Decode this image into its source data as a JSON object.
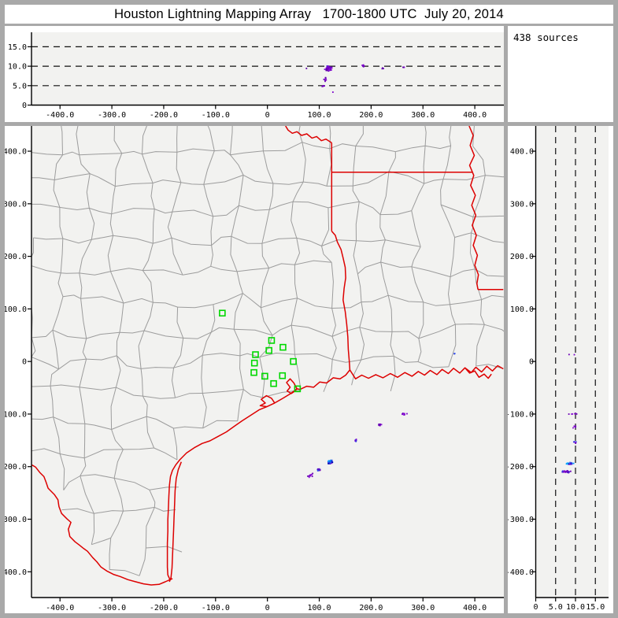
{
  "title": "Houston Lightning Mapping Array   1700-1800 UTC  July 20, 2014",
  "sources_panel": {
    "label": "438 sources"
  },
  "colors": {
    "frame": "#a9a9a9",
    "panel_bg": "#ffffff",
    "plot_bg": "#f2f2f0",
    "county_line": "#9c9c9c",
    "state_border": "#dd0000",
    "station": "#00d800",
    "axis": "#000000"
  },
  "palettes": {
    "purple": [
      "#7c00cc",
      "#6b00b6",
      "#8a14d6",
      "#5c00a8"
    ],
    "pb": [
      "#7c00cc",
      "#4028e0",
      "#2a50f0",
      "#6b00b6"
    ],
    "mix": [
      "#00a2ff",
      "#2a50f0",
      "#1a28d8",
      "#0000b0",
      "#38b8ff",
      "#7c00cc"
    ],
    "blue": [
      "#2a50f0",
      "#0000c8"
    ]
  },
  "chart_data": [
    {
      "type": "scatter",
      "name": "ew-altitude-projection",
      "x_axis": {
        "ticks": [
          -400,
          -300,
          -200,
          -100,
          0,
          100,
          200,
          300,
          400
        ],
        "tick_labels": [
          "-400.0",
          "-300.0",
          "-200.0",
          "-100.0",
          "0",
          "100.0",
          "200.0",
          "300.0",
          "400.0"
        ],
        "lim": [
          -455,
          456
        ]
      },
      "y_axis": {
        "ticks": [
          0,
          5,
          10,
          15
        ],
        "tick_labels": [
          "0",
          "5.0",
          "10.0",
          "15.0"
        ],
        "lim": [
          0,
          18.5
        ],
        "gridlines": [
          5,
          10,
          15
        ]
      },
      "clusters": [
        [
          118,
          9.4,
          10,
          1.1,
          46,
          "purple"
        ],
        [
          119,
          9.8,
          6,
          0.5,
          8,
          "pb"
        ],
        [
          112,
          6.8,
          5,
          1.0,
          8,
          "purple"
        ],
        [
          108,
          5.0,
          3,
          0.5,
          5,
          "purple"
        ],
        [
          126,
          3.5,
          1,
          0.3,
          1,
          "purple"
        ],
        [
          75,
          9.4,
          1,
          0.3,
          1,
          "purple"
        ],
        [
          185,
          10.1,
          4,
          0.4,
          6,
          "purple"
        ],
        [
          223,
          9.5,
          2,
          0.4,
          3,
          "purple"
        ],
        [
          263,
          9.8,
          3,
          0.4,
          4,
          "purple"
        ]
      ]
    },
    {
      "type": "scatter",
      "name": "plan-view-map",
      "x_axis": {
        "ticks": [
          -400,
          -300,
          -200,
          -100,
          0,
          100,
          200,
          300,
          400
        ],
        "tick_labels": [
          "-400.0",
          "-300.0",
          "-200.0",
          "-100.0",
          "0",
          "100.0",
          "200.0",
          "300.0",
          "400.0"
        ],
        "lim": [
          -455,
          456
        ]
      },
      "y_axis": {
        "ticks": [
          400,
          300,
          200,
          100,
          0,
          -100,
          -200,
          -300,
          -400
        ],
        "tick_labels": [
          "400.0",
          "300.0",
          "200.0",
          "100.0",
          "0",
          "-100.0",
          "-200.0",
          "-300.0",
          "-400.0"
        ],
        "lim": [
          -449,
          448
        ]
      },
      "stations": [
        [
          -87,
          92
        ],
        [
          8,
          40
        ],
        [
          3,
          21
        ],
        [
          -23,
          13
        ],
        [
          -25,
          -3
        ],
        [
          -26,
          -21
        ],
        [
          -5,
          -28
        ],
        [
          12,
          -42
        ],
        [
          30,
          27
        ],
        [
          50,
          0
        ],
        [
          29,
          -27
        ],
        [
          58,
          -52
        ]
      ],
      "clusters": [
        [
          121,
          -191,
          7,
          4,
          40,
          "mix"
        ],
        [
          100,
          -206,
          6,
          3,
          16,
          "pb"
        ],
        [
          82,
          -217,
          12,
          6,
          10,
          "purple"
        ],
        [
          170,
          -150,
          4,
          3,
          7,
          "pb"
        ],
        [
          217,
          -120,
          8,
          3,
          9,
          "purple"
        ],
        [
          263,
          -100,
          8,
          3,
          9,
          "purple"
        ],
        [
          361,
          15,
          2,
          1,
          2,
          "blue"
        ]
      ],
      "borders": {
        "red_river": [
          [
            35,
            448
          ],
          [
            40,
            440
          ],
          [
            48,
            434
          ],
          [
            57,
            437
          ],
          [
            66,
            430
          ],
          [
            76,
            433
          ],
          [
            86,
            425
          ],
          [
            95,
            428
          ],
          [
            104,
            420
          ],
          [
            113,
            423
          ],
          [
            124,
            416
          ]
        ],
        "tx_east": [
          [
            124,
            416
          ],
          [
            124,
            248
          ]
        ],
        "ar_la": [
          [
            124,
            360
          ],
          [
            396,
            360
          ]
        ],
        "sabine": [
          [
            124,
            248
          ],
          [
            131,
            240
          ],
          [
            135,
            227
          ],
          [
            142,
            213
          ],
          [
            146,
            197
          ],
          [
            150,
            179
          ],
          [
            151,
            159
          ],
          [
            148,
            139
          ],
          [
            146,
            117
          ],
          [
            150,
            95
          ],
          [
            153,
            71
          ],
          [
            155,
            47
          ],
          [
            156,
            23
          ],
          [
            158,
            0
          ],
          [
            159,
            -16
          ]
        ],
        "mississippi": [
          [
            389,
            448
          ],
          [
            397,
            430
          ],
          [
            391,
            411
          ],
          [
            399,
            392
          ],
          [
            390,
            373
          ],
          [
            398,
            354
          ],
          [
            392,
            335
          ],
          [
            401,
            316
          ],
          [
            394,
            297
          ],
          [
            402,
            278
          ],
          [
            395,
            259
          ],
          [
            403,
            240
          ],
          [
            397,
            221
          ],
          [
            405,
            202
          ],
          [
            400,
            183
          ],
          [
            407,
            165
          ],
          [
            404,
            148
          ],
          [
            406,
            137
          ]
        ],
        "la_ms": [
          [
            406,
            137
          ],
          [
            455,
            137
          ]
        ],
        "coast": [
          [
            455,
            -14
          ],
          [
            444,
            -8
          ],
          [
            434,
            -18
          ],
          [
            423,
            -9
          ],
          [
            413,
            -20
          ],
          [
            402,
            -11
          ],
          [
            393,
            -21
          ],
          [
            381,
            -12
          ],
          [
            371,
            -22
          ],
          [
            359,
            -13
          ],
          [
            349,
            -23
          ],
          [
            337,
            -15
          ],
          [
            327,
            -25
          ],
          [
            314,
            -17
          ],
          [
            303,
            -26
          ],
          [
            291,
            -19
          ],
          [
            279,
            -28
          ],
          [
            265,
            -21
          ],
          [
            251,
            -30
          ],
          [
            237,
            -23
          ],
          [
            223,
            -31
          ],
          [
            209,
            -25
          ],
          [
            195,
            -32
          ],
          [
            182,
            -26
          ],
          [
            170,
            -33
          ],
          [
            159,
            -16
          ],
          [
            151,
            -26
          ],
          [
            140,
            -33
          ],
          [
            127,
            -31
          ],
          [
            114,
            -41
          ],
          [
            101,
            -39
          ],
          [
            89,
            -49
          ],
          [
            76,
            -47
          ],
          [
            63,
            -53
          ],
          [
            57,
            -52
          ],
          [
            45,
            -61
          ],
          [
            30,
            -70
          ],
          [
            14,
            -79
          ],
          [
            -1,
            -86
          ],
          [
            -16,
            -92
          ],
          [
            -33,
            -103
          ],
          [
            -49,
            -113
          ],
          [
            -62,
            -122
          ],
          [
            -79,
            -134
          ],
          [
            -96,
            -143
          ],
          [
            -111,
            -151
          ],
          [
            -126,
            -156
          ],
          [
            -141,
            -164
          ],
          [
            -156,
            -174
          ],
          [
            -169,
            -187
          ],
          [
            -177,
            -197
          ],
          [
            -183,
            -207
          ],
          [
            -187,
            -219
          ],
          [
            -189,
            -236
          ],
          [
            -190,
            -256
          ],
          [
            -191,
            -279
          ],
          [
            -192,
            -301
          ],
          [
            -192,
            -323
          ],
          [
            -193,
            -346
          ],
          [
            -193,
            -369
          ],
          [
            -193,
            -391
          ],
          [
            -192,
            -406
          ],
          [
            -188,
            -415
          ],
          [
            -183,
            -413
          ]
        ],
        "barrier_island": [
          [
            -166,
            -191
          ],
          [
            -172,
            -206
          ],
          [
            -176,
            -223
          ],
          [
            -178,
            -246
          ],
          [
            -179,
            -271
          ],
          [
            -180,
            -296
          ],
          [
            -181,
            -321
          ],
          [
            -182,
            -346
          ],
          [
            -183,
            -371
          ],
          [
            -184,
            -393
          ],
          [
            -186,
            -411
          ],
          [
            -189,
            -419
          ]
        ],
        "rio_grande": [
          [
            -454,
            -197
          ],
          [
            -447,
            -201
          ],
          [
            -439,
            -211
          ],
          [
            -431,
            -219
          ],
          [
            -427,
            -229
          ],
          [
            -423,
            -241
          ],
          [
            -411,
            -253
          ],
          [
            -404,
            -263
          ],
          [
            -402,
            -276
          ],
          [
            -397,
            -289
          ],
          [
            -387,
            -299
          ],
          [
            -379,
            -306
          ],
          [
            -384,
            -319
          ],
          [
            -381,
            -333
          ],
          [
            -371,
            -343
          ],
          [
            -363,
            -349
          ],
          [
            -354,
            -356
          ],
          [
            -347,
            -361
          ],
          [
            -337,
            -373
          ],
          [
            -329,
            -381
          ],
          [
            -321,
            -391
          ],
          [
            -309,
            -399
          ],
          [
            -297,
            -405
          ],
          [
            -284,
            -409
          ],
          [
            -269,
            -415
          ],
          [
            -254,
            -419
          ],
          [
            -239,
            -423
          ],
          [
            -224,
            -425
          ],
          [
            -209,
            -424
          ],
          [
            -197,
            -419
          ],
          [
            -188,
            -415
          ]
        ],
        "galveston_bay": [
          [
            57,
            -52
          ],
          [
            51,
            -41
          ],
          [
            44,
            -33
          ],
          [
            37,
            -40
          ],
          [
            44,
            -49
          ],
          [
            38,
            -56
          ],
          [
            46,
            -61
          ],
          [
            52,
            -57
          ],
          [
            57,
            -52
          ]
        ],
        "matagorda_bay": [
          [
            14,
            -79
          ],
          [
            8,
            -70
          ],
          [
            -2,
            -65
          ],
          [
            -12,
            -72
          ],
          [
            -4,
            -79
          ],
          [
            -14,
            -84
          ],
          [
            -1,
            -86
          ]
        ],
        "la_delta": [
          [
            381,
            -12
          ],
          [
            390,
            -22
          ],
          [
            400,
            -18
          ],
          [
            408,
            -30
          ],
          [
            418,
            -24
          ],
          [
            426,
            -32
          ],
          [
            432,
            -24
          ]
        ]
      }
    },
    {
      "type": "scatter",
      "name": "ns-altitude-projection",
      "x_axis": {
        "ticks": [
          0,
          5,
          10,
          15
        ],
        "tick_labels": [
          "0",
          "5.0",
          "10.0",
          "15.0"
        ],
        "lim": [
          0,
          18.3
        ],
        "gridlines": [
          5,
          10,
          15
        ]
      },
      "y_axis": {
        "ticks": [
          400,
          300,
          200,
          100,
          0,
          -100,
          -200,
          -300,
          -400
        ],
        "tick_labels": [
          "400.0",
          "300.0",
          "200.0",
          "100.0",
          "0",
          "-100.0",
          "-200.0",
          "-300.0",
          "-400.0"
        ],
        "lim": [
          -449,
          448
        ]
      },
      "clusters": [
        [
          8.6,
          -194,
          1.1,
          2.5,
          38,
          "mix"
        ],
        [
          7.6,
          -210,
          1.7,
          3,
          22,
          "pb"
        ],
        [
          9.8,
          -125,
          0.5,
          4,
          7,
          "purple"
        ],
        [
          9.9,
          -154,
          0.8,
          3,
          6,
          "pb"
        ],
        [
          9.5,
          -100,
          1.6,
          1.5,
          6,
          "purple"
        ],
        [
          9.5,
          13,
          1.5,
          0.5,
          2,
          "purple"
        ]
      ]
    }
  ]
}
